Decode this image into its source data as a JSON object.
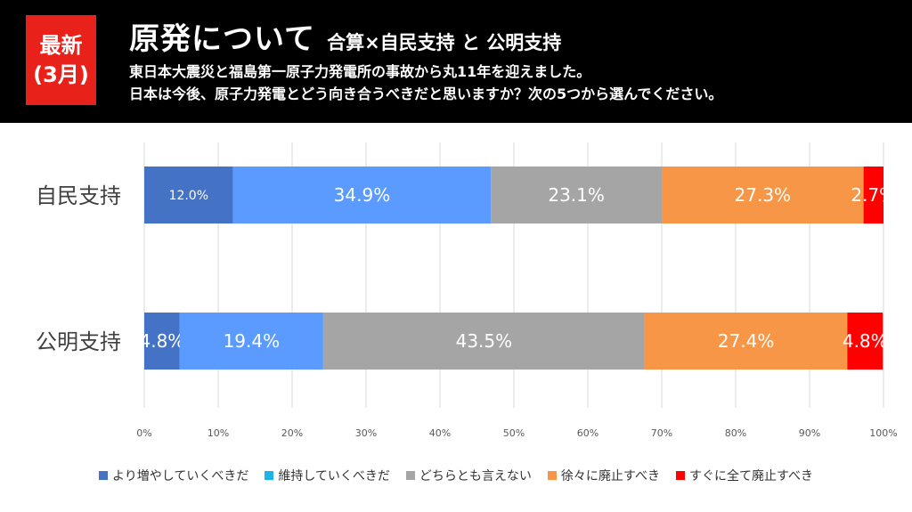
{
  "badge": {
    "line1": "最新",
    "line2": "(3月)"
  },
  "header": {
    "title": "原発について",
    "subtitle": "合算×自民支持 と 公明支持",
    "desc_line1": "東日本大震災と福島第一原子力発電所の事故から丸11年を迎えました。",
    "desc_line2": "日本は今後、原子力発電とどう向き合うべきだと思いますか？次の5つから選んでください。"
  },
  "chart_data": {
    "type": "bar",
    "orientation": "horizontal",
    "stacked": "100%",
    "categories": [
      "自民支持",
      "公明支持"
    ],
    "series": [
      {
        "name": "より増やしていくべきだ",
        "values": [
          12.0,
          4.8
        ],
        "labels": [
          "12.0%",
          "4.8%"
        ],
        "color": "#4472c4",
        "legend_color": "#4472c4"
      },
      {
        "name": "維持していくべきだ",
        "values": [
          34.9,
          19.4
        ],
        "labels": [
          "34.9%",
          "19.4%"
        ],
        "color": "#5b9bff",
        "legend_color": "#1db5e8"
      },
      {
        "name": "どちらとも言えない",
        "values": [
          23.1,
          43.5
        ],
        "labels": [
          "23.1%",
          "43.5%"
        ],
        "color": "#a5a5a5",
        "legend_color": "#a5a5a5"
      },
      {
        "name": "徐々に廃止すべき",
        "values": [
          27.3,
          27.4
        ],
        "labels": [
          "27.3%",
          "27.4%"
        ],
        "color": "#f79646",
        "legend_color": "#f79646"
      },
      {
        "name": "すぐに全て廃止すべき",
        "values": [
          2.7,
          4.8
        ],
        "labels": [
          "2.7%",
          "4.8%"
        ],
        "color": "#ff0000",
        "legend_color": "#ff0000"
      }
    ],
    "xlim": [
      0,
      100
    ],
    "x_ticks": [
      "0%",
      "10%",
      "20%",
      "30%",
      "40%",
      "50%",
      "60%",
      "70%",
      "80%",
      "90%",
      "100%"
    ],
    "grid": true,
    "legend": "bottom"
  }
}
